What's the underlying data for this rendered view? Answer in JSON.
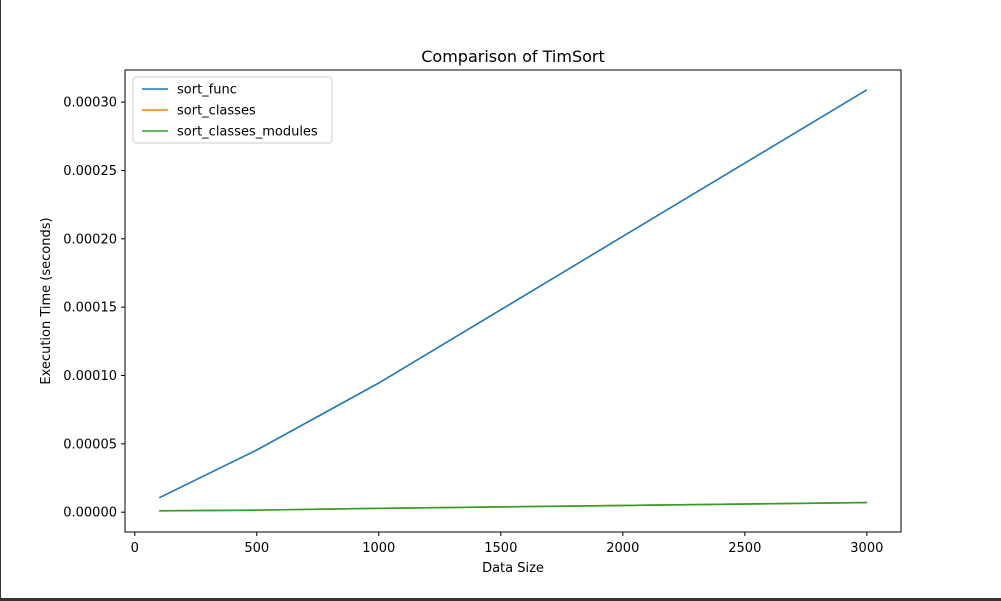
{
  "chart_data": {
    "type": "line",
    "title": "Comparison of TimSort",
    "xlabel": "Data Size",
    "ylabel": "Execution Time (seconds)",
    "xlim": [
      -40,
      3140
    ],
    "ylim": [
      -1.45e-05,
      0.0003235
    ],
    "xticks": [
      0,
      500,
      1000,
      1500,
      2000,
      2500,
      3000
    ],
    "xtick_labels": [
      "0",
      "500",
      "1000",
      "1500",
      "2000",
      "2500",
      "3000"
    ],
    "yticks": [
      0,
      5e-05,
      0.0001,
      0.00015,
      0.0002,
      0.00025,
      0.0003
    ],
    "ytick_labels": [
      "0.00000",
      "0.00005",
      "0.00010",
      "0.00015",
      "0.00020",
      "0.00025",
      "0.00030"
    ],
    "grid": false,
    "legend_position": "top-left",
    "x": [
      100,
      500,
      1000,
      3000
    ],
    "series": [
      {
        "name": "sort_func",
        "color": "#1f77b4",
        "values": [
          1.05e-05,
          4.55e-05,
          9.45e-05,
          0.000309
        ]
      },
      {
        "name": "sort_classes",
        "color": "#ff7f0e",
        "values": [
          1e-06,
          1.5e-06,
          2.8e-06,
          7e-06
        ]
      },
      {
        "name": "sort_classes_modules",
        "color": "#2ca02c",
        "values": [
          1e-06,
          1.5e-06,
          2.8e-06,
          7e-06
        ]
      }
    ]
  }
}
